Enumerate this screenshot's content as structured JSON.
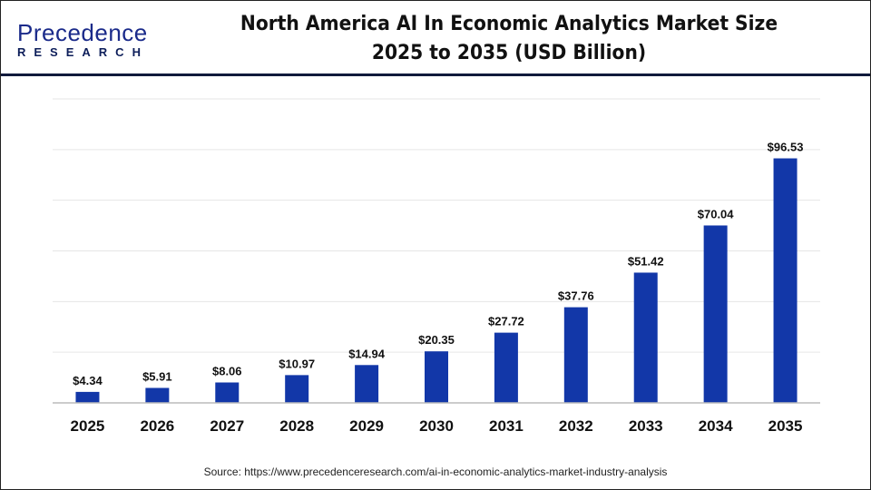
{
  "logo": {
    "text": "Precedence",
    "sub": "RESEARCH"
  },
  "title_line1": "North America AI In Economic Analytics Market Size",
  "title_line2": "2025 to 2035 (USD Billion)",
  "source": "Source: https://www.precedenceresearch.com/ai-in-economic-analytics-market-industry-analysis",
  "colors": {
    "bar": "#1237a8",
    "header_rule": "#111a3c",
    "grid": "#e6e6e6",
    "axis": "#bbbbbb"
  },
  "chart_data": {
    "type": "bar",
    "title": "North America AI In Economic Analytics Market Size 2025 to 2035 (USD Billion)",
    "categories": [
      "2025",
      "2026",
      "2027",
      "2028",
      "2029",
      "2030",
      "2031",
      "2032",
      "2033",
      "2034",
      "2035"
    ],
    "values": [
      4.34,
      5.91,
      8.06,
      10.97,
      14.94,
      20.35,
      27.72,
      37.76,
      51.42,
      70.04,
      96.53
    ],
    "labels": [
      "$4.34",
      "$5.91",
      "$8.06",
      "$10.97",
      "$14.94",
      "$20.35",
      "$27.72",
      "$37.76",
      "$51.42",
      "$70.04",
      "$96.53"
    ],
    "xlabel": "",
    "ylabel": "",
    "ylim": [
      0,
      120
    ],
    "grid": true,
    "y_axis_visible": false
  }
}
